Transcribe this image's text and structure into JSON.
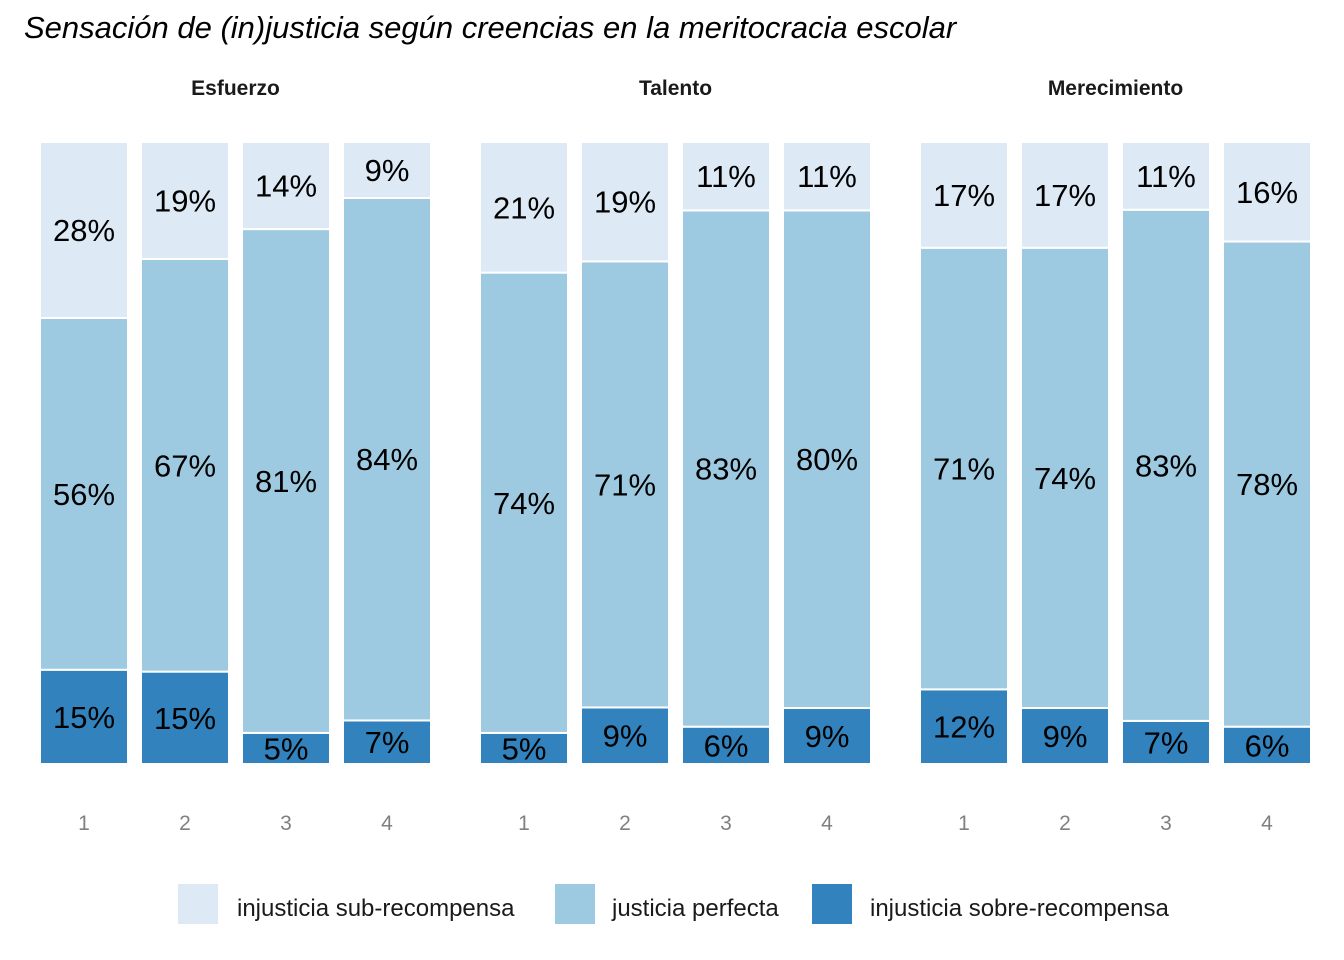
{
  "chart_data": {
    "type": "bar",
    "stacked": true,
    "title": "Sensación de (in)justicia según creencias en la meritocracia escolar",
    "xlabel": "",
    "ylabel": "",
    "ylim": [
      0,
      100
    ],
    "grid": false,
    "legend_position": "bottom",
    "categories": [
      "1",
      "2",
      "3",
      "4"
    ],
    "series_colors": [
      "#dde9f5",
      "#9ecae1",
      "#3182bd"
    ],
    "series_names": [
      "injusticia sub-recompensa",
      "justicia perfecta",
      "injusticia sobre-recompensa"
    ],
    "panels": [
      {
        "name": "Esfuerzo",
        "series": [
          {
            "name": "injusticia sub-recompensa",
            "values": [
              28,
              19,
              14,
              9
            ],
            "labels": [
              "28%",
              "19%",
              "14%",
              "9%"
            ]
          },
          {
            "name": "justicia perfecta",
            "values": [
              56,
              67,
              81,
              84
            ],
            "labels": [
              "56%",
              "67%",
              "81%",
              "84%"
            ]
          },
          {
            "name": "injusticia sobre-recompensa",
            "values": [
              15,
              15,
              5,
              7
            ],
            "labels": [
              "15%",
              "15%",
              "5%",
              "7%"
            ]
          }
        ]
      },
      {
        "name": "Talento",
        "series": [
          {
            "name": "injusticia sub-recompensa",
            "values": [
              21,
              19,
              11,
              11
            ],
            "labels": [
              "21%",
              "19%",
              "11%",
              "11%"
            ]
          },
          {
            "name": "justicia perfecta",
            "values": [
              74,
              71,
              83,
              80
            ],
            "labels": [
              "74%",
              "71%",
              "83%",
              "80%"
            ]
          },
          {
            "name": "injusticia sobre-recompensa",
            "values": [
              5,
              9,
              6,
              9
            ],
            "labels": [
              "5%",
              "9%",
              "6%",
              "9%"
            ]
          }
        ]
      },
      {
        "name": "Merecimiento",
        "series": [
          {
            "name": "injusticia sub-recompensa",
            "values": [
              17,
              17,
              11,
              16
            ],
            "labels": [
              "17%",
              "17%",
              "11%",
              "16%"
            ]
          },
          {
            "name": "justicia perfecta",
            "values": [
              71,
              74,
              83,
              78
            ],
            "labels": [
              "71%",
              "74%",
              "83%",
              "78%"
            ]
          },
          {
            "name": "injusticia sobre-recompensa",
            "values": [
              12,
              9,
              7,
              6
            ],
            "labels": [
              "12%",
              "9%",
              "7%",
              "6%"
            ]
          }
        ]
      }
    ]
  }
}
